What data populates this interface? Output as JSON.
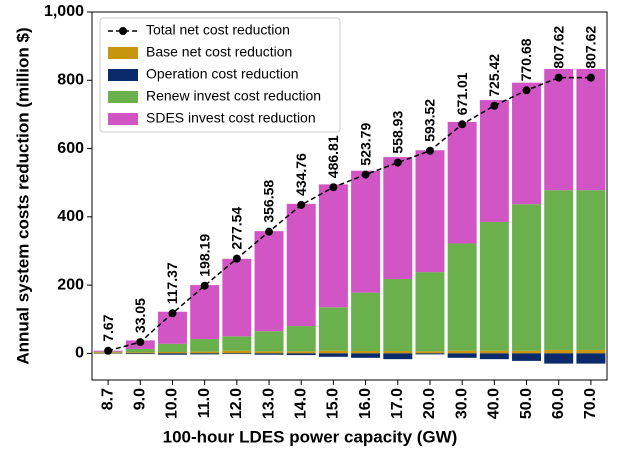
{
  "chart_data": {
    "type": "bar",
    "stacked": true,
    "x_label": "100-hour LDES power capacity (GW)",
    "y_label": "Annual system costs reduction (million $)",
    "categories": [
      "8.7",
      "9.0",
      "10.0",
      "11.0",
      "12.0",
      "13.0",
      "14.0",
      "15.0",
      "16.0",
      "17.0",
      "20.0",
      "30.0",
      "40.0",
      "50.0",
      "60.0",
      "70.0"
    ],
    "series": [
      {
        "name": "Total net cost reduction",
        "type": "line",
        "color": "#000000",
        "values": [
          7.67,
          33.05,
          117.37,
          198.19,
          277.54,
          356.58,
          434.76,
          486.81,
          523.79,
          558.93,
          593.52,
          671.01,
          725.42,
          770.68,
          807.62,
          807.62
        ]
      },
      {
        "name": "Base net cost reduction",
        "color": "#c8960c",
        "values": [
          3,
          3,
          4,
          5,
          8,
          6,
          6,
          8,
          7,
          7,
          6,
          8,
          8,
          8,
          10,
          10
        ]
      },
      {
        "name": "Operation cost reduction",
        "color": "#0a2a6b",
        "values": [
          -1,
          -2,
          -4,
          -3,
          -2,
          -4,
          -5,
          -10,
          -13,
          -17,
          -3,
          -13,
          -17,
          -22,
          -30,
          -30
        ]
      },
      {
        "name": "Renew invest cost reduction",
        "color": "#6ab04c",
        "values": [
          2,
          10,
          24,
          37,
          42,
          59,
          74,
          127,
          171,
          211,
          232,
          314,
          377,
          429,
          468,
          468
        ]
      },
      {
        "name": "SDES invest cost reduction",
        "color": "#d155c4",
        "values": [
          3,
          25,
          94,
          158,
          227,
          293,
          358,
          360,
          357,
          357,
          357,
          356,
          357,
          356,
          355,
          355
        ]
      }
    ],
    "ylim": [
      -78,
      1000
    ],
    "yticks": [
      0,
      200,
      400,
      600,
      800,
      {
        "value": 1000,
        "label": "1,000"
      }
    ],
    "legend": "upper left"
  }
}
